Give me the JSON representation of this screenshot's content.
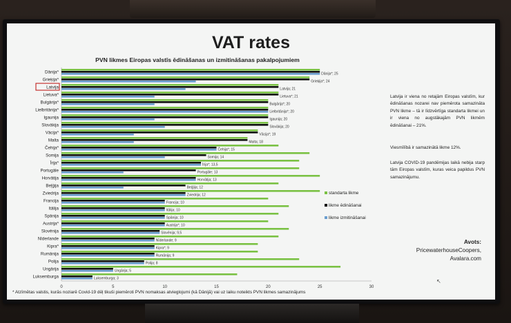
{
  "slide": {
    "title": "VAT rates",
    "side_text": [
      "Latvija ir viena no retajām Eiropas valstīm, kur ēdināšanas nozarei nav piemērota samazināta PVN likme – tā ir līdzvērtīga standarta likmei un ir viena no augstākajām PVN likmēm ēdināšanai – 21%.",
      "Viesmīlībā ir samazinātā likme 12%.",
      "Latvija COVID-19 pandēmijas laikā nebija starp tām Eiropas valstīm, kuras veica papildus PVN samazinājumu."
    ],
    "sources_title": "Avots:",
    "sources_lines": [
      "PricewaterhouseCoopers,",
      "Avalara.com"
    ],
    "footnote": "* Atzīmētas valstis, kurās noziarē Covid-19 dēļ tikuši piemēroti PVN nomaksas atvieglojumi (kā Dānijā) vai uz laiku noteikts PVN likmes samazinājums",
    "highlighted_country": "Latvija"
  },
  "colors": {
    "standard": "#7ac143",
    "catering": "#111111",
    "replacement": "#6a9ecf",
    "highlight_box": "#c0201e"
  },
  "chart_data": {
    "type": "bar",
    "orientation": "horizontal",
    "title": "PVN likmes Eiropas valstīs ēdināšanas un izmitināšanas pakalpojumiem",
    "xlim": [
      0,
      30
    ],
    "x_ticks": [
      0,
      5,
      10,
      15,
      20,
      25,
      30
    ],
    "legend_position": "right",
    "categories": [
      "Dānija*",
      "Grieķija*",
      "Latvija",
      "Lietuva*",
      "Bulgārija*",
      "Lielbritānija*",
      "Igaunija",
      "Slovākija",
      "Vācija*",
      "Malta",
      "Čehija*",
      "Somija",
      "Īrija*",
      "Portugāle",
      "Horvātija",
      "Beļģija",
      "Zviedrija",
      "Francija",
      "Itālija",
      "Spānija",
      "Austrija*",
      "Slovēnija",
      "Nīderlande",
      "Kipra*",
      "Rumānija",
      "Polija",
      "Ungārija",
      "Luksemburga"
    ],
    "series": [
      {
        "name": "standarta likme",
        "values": [
          25,
          24,
          21,
          21,
          20,
          20,
          20,
          20,
          19,
          18,
          21,
          24,
          23,
          23,
          25,
          21,
          25,
          20,
          22,
          21,
          20,
          22,
          21,
          19,
          19,
          23,
          27,
          17
        ]
      },
      {
        "name": "likme ēdināšanai",
        "values": [
          25,
          24,
          21,
          21,
          20,
          20,
          20,
          20,
          19,
          18,
          15,
          14,
          13.5,
          13,
          13,
          12,
          12,
          10,
          10,
          10,
          10,
          9.5,
          9,
          9,
          9,
          8,
          5,
          3
        ]
      },
      {
        "name": "likme izmitināšanai",
        "values": [
          25,
          13,
          12,
          9,
          9,
          20,
          9,
          10,
          7,
          7,
          15,
          10,
          13.5,
          6,
          13,
          6,
          12,
          10,
          10,
          10,
          10,
          9.5,
          9,
          9,
          9,
          8,
          5,
          3
        ]
      }
    ],
    "data_labels": [
      "Dānija*; 25",
      "Grieķija*; 24",
      "Latvija; 21",
      "Lietuva*; 21",
      "Bulgārija*; 20",
      "Lielbritānija*; 20",
      "Igaunija; 20",
      "Slovākija; 20",
      "Vācija*; 19",
      "Malta; 18",
      "Čehija*; 15",
      "Somija; 14",
      "Īrija*; 13,5",
      "Portugāle; 13",
      "Horvātija; 13",
      "Beļģija; 12",
      "Zviedrija; 12",
      "Francija; 10",
      "Itālija; 10",
      "Spānija; 10",
      "Austrija*; 10",
      "Slovēnija; 9,5",
      "Nīderlande; 9",
      "Kipra*; 9",
      "Rumānija; 9",
      "Polija; 8",
      "Ungārija; 5",
      "Luksemburga; 3"
    ]
  }
}
